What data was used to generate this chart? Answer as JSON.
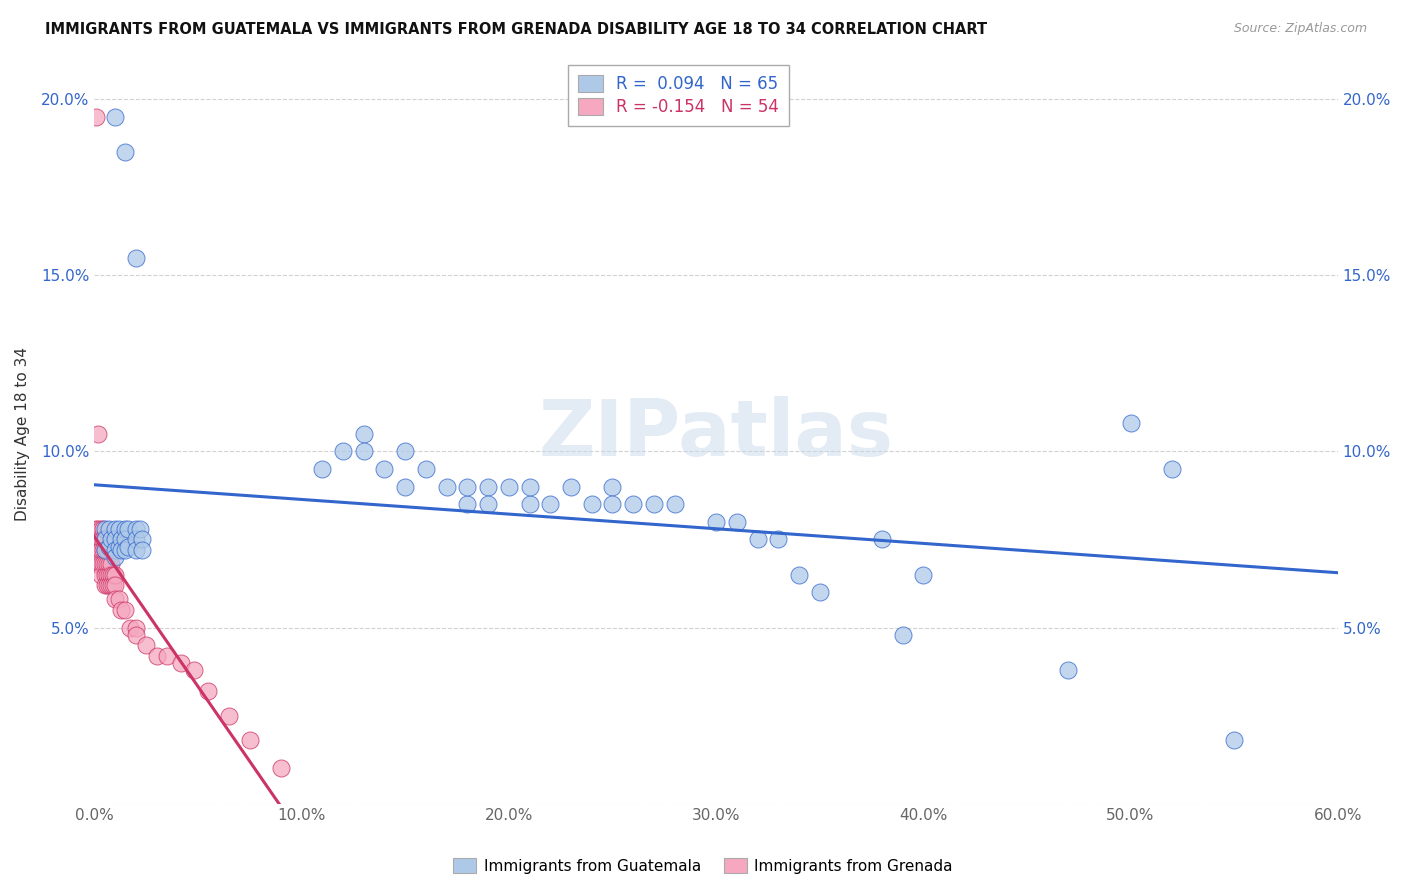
{
  "title": "IMMIGRANTS FROM GUATEMALA VS IMMIGRANTS FROM GRENADA DISABILITY AGE 18 TO 34 CORRELATION CHART",
  "source": "Source: ZipAtlas.com",
  "ylabel": "Disability Age 18 to 34",
  "xlim": [
    0.0,
    0.6
  ],
  "ylim": [
    0.0,
    0.21
  ],
  "xticks": [
    0.0,
    0.1,
    0.2,
    0.3,
    0.4,
    0.5,
    0.6
  ],
  "yticks": [
    0.0,
    0.05,
    0.1,
    0.15,
    0.2
  ],
  "xtick_labels": [
    "0.0%",
    "10.0%",
    "20.0%",
    "30.0%",
    "40.0%",
    "50.0%",
    "60.0%"
  ],
  "ytick_labels_left": [
    "",
    "5.0%",
    "10.0%",
    "15.0%",
    "20.0%"
  ],
  "ytick_labels_right": [
    "",
    "5.0%",
    "10.0%",
    "15.0%",
    "20.0%"
  ],
  "R_blue": 0.094,
  "N_blue": 65,
  "R_pink": -0.154,
  "N_pink": 54,
  "blue_color": "#aec9e8",
  "pink_color": "#f5a8c0",
  "blue_line_color": "#3366cc",
  "pink_line_color": "#cc3366",
  "watermark": "ZIPatlas",
  "legend_label_blue": "Immigrants from Guatemala",
  "legend_label_pink": "Immigrants from Grenada",
  "blue_x": [
    0.005,
    0.005,
    0.005,
    0.007,
    0.007,
    0.008,
    0.01,
    0.01,
    0.01,
    0.01,
    0.012,
    0.012,
    0.013,
    0.013,
    0.015,
    0.015,
    0.015,
    0.016,
    0.016,
    0.02,
    0.02,
    0.02,
    0.022,
    0.023,
    0.023,
    0.11,
    0.12,
    0.13,
    0.13,
    0.14,
    0.15,
    0.15,
    0.16,
    0.17,
    0.18,
    0.18,
    0.19,
    0.19,
    0.2,
    0.21,
    0.21,
    0.22,
    0.23,
    0.24,
    0.25,
    0.25,
    0.26,
    0.27,
    0.28,
    0.3,
    0.31,
    0.32,
    0.33,
    0.34,
    0.35,
    0.38,
    0.39,
    0.4,
    0.47,
    0.5,
    0.52,
    0.55,
    0.01,
    0.015,
    0.02
  ],
  "blue_y": [
    0.078,
    0.075,
    0.072,
    0.078,
    0.073,
    0.075,
    0.078,
    0.075,
    0.072,
    0.07,
    0.078,
    0.073,
    0.075,
    0.072,
    0.078,
    0.075,
    0.072,
    0.078,
    0.073,
    0.078,
    0.075,
    0.072,
    0.078,
    0.075,
    0.072,
    0.095,
    0.1,
    0.105,
    0.1,
    0.095,
    0.1,
    0.09,
    0.095,
    0.09,
    0.085,
    0.09,
    0.09,
    0.085,
    0.09,
    0.085,
    0.09,
    0.085,
    0.09,
    0.085,
    0.09,
    0.085,
    0.085,
    0.085,
    0.085,
    0.08,
    0.08,
    0.075,
    0.075,
    0.065,
    0.06,
    0.075,
    0.048,
    0.065,
    0.038,
    0.108,
    0.095,
    0.018,
    0.195,
    0.185,
    0.155
  ],
  "pink_x": [
    0.001,
    0.001,
    0.001,
    0.001,
    0.002,
    0.002,
    0.002,
    0.002,
    0.003,
    0.003,
    0.003,
    0.003,
    0.003,
    0.004,
    0.004,
    0.004,
    0.004,
    0.005,
    0.005,
    0.005,
    0.005,
    0.005,
    0.006,
    0.006,
    0.006,
    0.006,
    0.007,
    0.007,
    0.007,
    0.008,
    0.008,
    0.008,
    0.009,
    0.009,
    0.01,
    0.01,
    0.01,
    0.012,
    0.013,
    0.015,
    0.017,
    0.02,
    0.02,
    0.025,
    0.03,
    0.035,
    0.042,
    0.048,
    0.055,
    0.065,
    0.075,
    0.09,
    0.001,
    0.002
  ],
  "pink_y": [
    0.078,
    0.075,
    0.072,
    0.068,
    0.078,
    0.075,
    0.072,
    0.068,
    0.078,
    0.075,
    0.072,
    0.068,
    0.065,
    0.078,
    0.075,
    0.072,
    0.068,
    0.075,
    0.072,
    0.068,
    0.065,
    0.062,
    0.072,
    0.068,
    0.065,
    0.062,
    0.068,
    0.065,
    0.062,
    0.068,
    0.065,
    0.062,
    0.065,
    0.062,
    0.065,
    0.062,
    0.058,
    0.058,
    0.055,
    0.055,
    0.05,
    0.05,
    0.048,
    0.045,
    0.042,
    0.042,
    0.04,
    0.038,
    0.032,
    0.025,
    0.018,
    0.01,
    0.195,
    0.105
  ]
}
